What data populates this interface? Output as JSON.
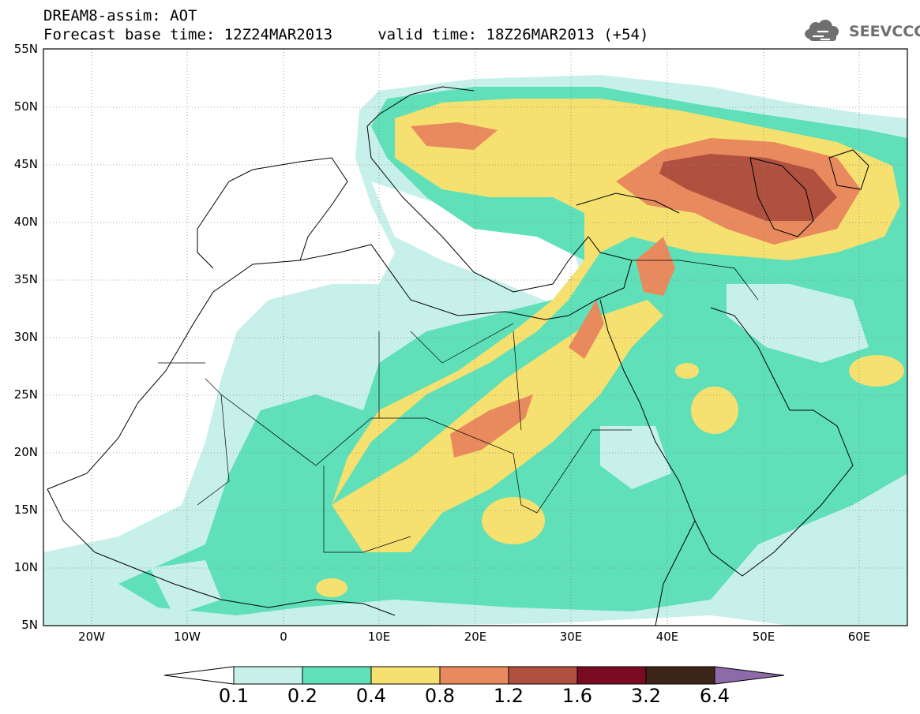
{
  "header": {
    "title": "DREAM8-assim: AOT",
    "subtitle": "Forecast base time: 12Z24MAR2013     valid time: 18Z26MAR2013 (+54)",
    "logo_text": "SEEVCCC"
  },
  "map": {
    "variable": "AOT",
    "lon_range": [
      -25,
      65
    ],
    "lat_range": [
      5,
      55
    ],
    "lat_labels": [
      "55N",
      "50N",
      "45N",
      "40N",
      "35N",
      "30N",
      "25N",
      "20N",
      "15N",
      "10N",
      "5N"
    ],
    "lon_labels": [
      "20W",
      "10W",
      "0",
      "10E",
      "20E",
      "30E",
      "40E",
      "50E",
      "60E"
    ],
    "grid": "dotted"
  },
  "colorbar": {
    "labels": [
      "0.1",
      "0.2",
      "0.4",
      "0.8",
      "1.2",
      "1.6",
      "3.2",
      "6.4"
    ],
    "colors": [
      "#ffffff",
      "#c8f0ea",
      "#5fe0b8",
      "#f5e070",
      "#e88a5e",
      "#b0503e",
      "#7a0a22",
      "#3c2418",
      "#8e6aa8"
    ]
  }
}
